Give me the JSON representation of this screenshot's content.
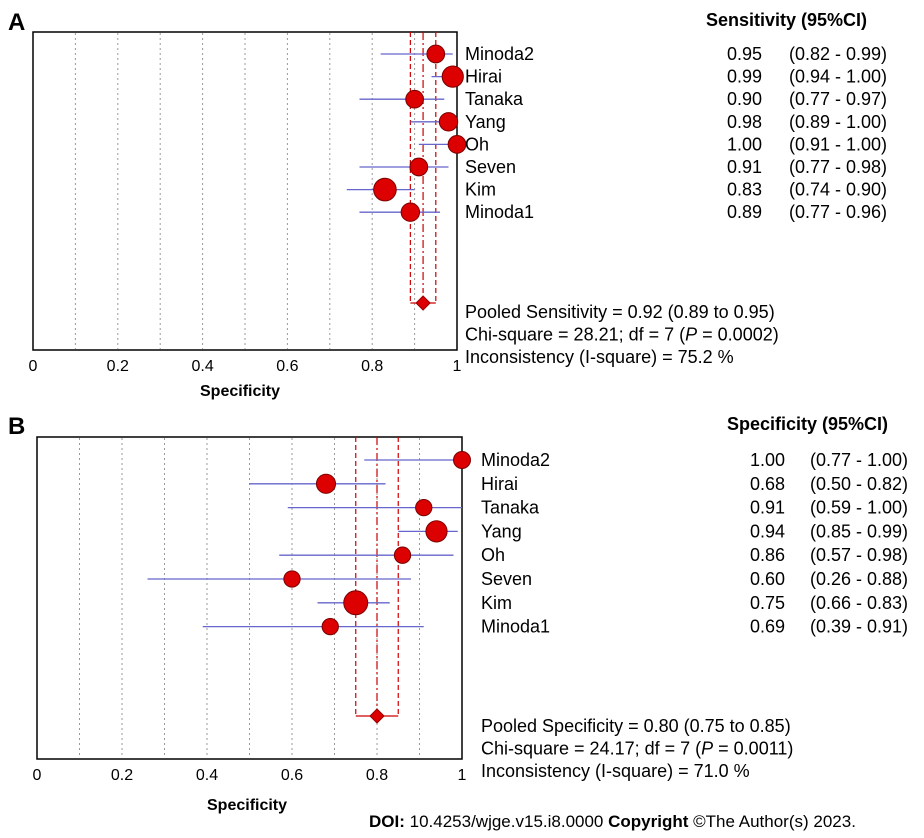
{
  "chart_data": [
    {
      "type": "forest",
      "panel_label": "A",
      "column_header": "Sensitivity (95%CI)",
      "xlabel": "Specificity",
      "xlim": [
        0,
        1
      ],
      "xticks": [
        "0",
        "0.2",
        "0.4",
        "0.6",
        "0.8",
        "1"
      ],
      "reference_color": "#cc0000",
      "marker_color": "#dd0000",
      "ci_color": "#6666cc",
      "studies": [
        {
          "name": "Minoda2",
          "estimate": 0.95,
          "lower": 0.82,
          "upper": 0.99,
          "estimate_label": "0.95",
          "ci_label": "(0.82 - 0.99)",
          "weight": 0.55
        },
        {
          "name": "Hirai",
          "estimate": 0.99,
          "lower": 0.94,
          "upper": 1.0,
          "estimate_label": "0.99",
          "ci_label": "(0.94 - 1.00)",
          "weight": 0.8
        },
        {
          "name": "Tanaka",
          "estimate": 0.9,
          "lower": 0.77,
          "upper": 0.97,
          "estimate_label": "0.90",
          "ci_label": "(0.77 - 0.97)",
          "weight": 0.55
        },
        {
          "name": "Yang",
          "estimate": 0.98,
          "lower": 0.89,
          "upper": 1.0,
          "estimate_label": "0.98",
          "ci_label": "(0.89 - 1.00)",
          "weight": 0.6
        },
        {
          "name": "Oh",
          "estimate": 1.0,
          "lower": 0.91,
          "upper": 1.0,
          "estimate_label": "1.00",
          "ci_label": "(0.91 - 1.00)",
          "weight": 0.55
        },
        {
          "name": "Seven",
          "estimate": 0.91,
          "lower": 0.77,
          "upper": 0.98,
          "estimate_label": "0.91",
          "ci_label": "(0.77 - 0.98)",
          "weight": 0.55
        },
        {
          "name": "Kim",
          "estimate": 0.83,
          "lower": 0.74,
          "upper": 0.9,
          "estimate_label": "0.83",
          "ci_label": "(0.74 - 0.90)",
          "weight": 0.9
        },
        {
          "name": "Minoda1",
          "estimate": 0.89,
          "lower": 0.77,
          "upper": 0.96,
          "estimate_label": "0.89",
          "ci_label": "(0.77 - 0.96)",
          "weight": 0.6
        }
      ],
      "pooled": {
        "estimate": 0.92,
        "lower": 0.89,
        "upper": 0.95
      },
      "summary_lines": [
        "Pooled Sensitivity = 0.92 (0.89 to 0.95)",
        "Chi-square = 28.21; df =  7 (P = 0.0002)",
        "Inconsistency (I-square) = 75.2 %"
      ]
    },
    {
      "type": "forest",
      "panel_label": "B",
      "column_header": "Specificity (95%CI)",
      "xlabel": "Specificity",
      "xlim": [
        0,
        1
      ],
      "xticks": [
        "0",
        "0.2",
        "0.4",
        "0.6",
        "0.8",
        "1"
      ],
      "reference_color": "#cc0000",
      "marker_color": "#dd0000",
      "ci_color": "#6666cc",
      "studies": [
        {
          "name": "Minoda2",
          "estimate": 1.0,
          "lower": 0.77,
          "upper": 1.0,
          "estimate_label": "1.00",
          "ci_label": "(0.77 - 1.00)",
          "weight": 0.5
        },
        {
          "name": "Hirai",
          "estimate": 0.68,
          "lower": 0.5,
          "upper": 0.82,
          "estimate_label": "0.68",
          "ci_label": "(0.50 - 0.82)",
          "weight": 0.65
        },
        {
          "name": "Tanaka",
          "estimate": 0.91,
          "lower": 0.59,
          "upper": 1.0,
          "estimate_label": "0.91",
          "ci_label": "(0.59 - 1.00)",
          "weight": 0.45
        },
        {
          "name": "Yang",
          "estimate": 0.94,
          "lower": 0.85,
          "upper": 0.99,
          "estimate_label": "0.94",
          "ci_label": "(0.85 - 0.99)",
          "weight": 0.8
        },
        {
          "name": "Oh",
          "estimate": 0.86,
          "lower": 0.57,
          "upper": 0.98,
          "estimate_label": "0.86",
          "ci_label": "(0.57 - 0.98)",
          "weight": 0.45
        },
        {
          "name": "Seven",
          "estimate": 0.6,
          "lower": 0.26,
          "upper": 0.88,
          "estimate_label": "0.60",
          "ci_label": "(0.26 - 0.88)",
          "weight": 0.45
        },
        {
          "name": "Kim",
          "estimate": 0.75,
          "lower": 0.66,
          "upper": 0.83,
          "estimate_label": "0.75",
          "ci_label": "(0.66 - 0.83)",
          "weight": 1.0
        },
        {
          "name": "Minoda1",
          "estimate": 0.69,
          "lower": 0.39,
          "upper": 0.91,
          "estimate_label": "0.69",
          "ci_label": "(0.39 - 0.91)",
          "weight": 0.45
        }
      ],
      "pooled": {
        "estimate": 0.8,
        "lower": 0.75,
        "upper": 0.85
      },
      "summary_lines": [
        "Pooled Specificity = 0.80 (0.75 to 0.85)",
        "Chi-square = 24.17; df =  7 (P = 0.0011)",
        "Inconsistency (I-square) = 71.0 %"
      ]
    }
  ],
  "footer": {
    "doi_label": "DOI:",
    "doi_value": "10.4253/wjge.v15.i8.0000",
    "copyright_label": "Copyright",
    "copyright_value": "©The Author(s) 2023."
  }
}
